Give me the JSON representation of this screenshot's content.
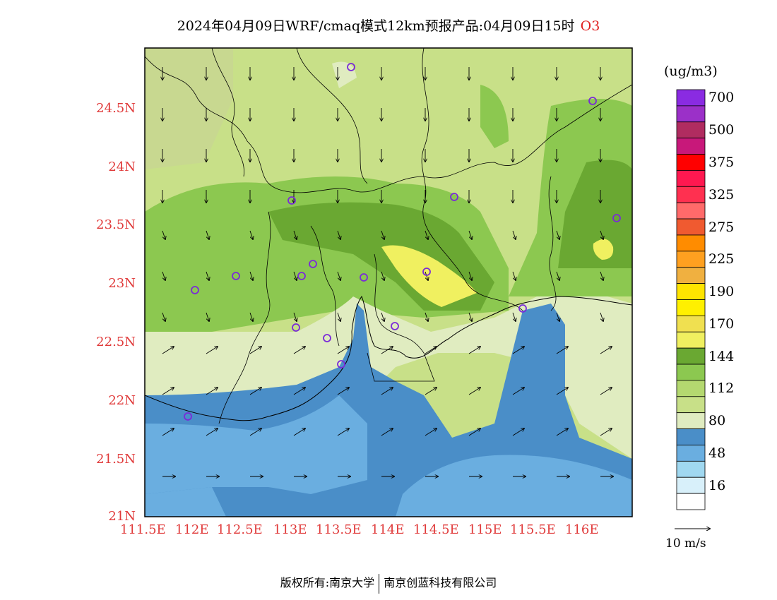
{
  "title": {
    "text": "2024年04月09日WRF/cmaq模式12km预报产品:04月09日15时",
    "variable": "O3"
  },
  "map": {
    "lon_range": [
      111.5,
      116.5
    ],
    "lat_range": [
      21.0,
      25.0
    ],
    "y_ticks": [
      "24.5N",
      "24N",
      "23.5N",
      "23N",
      "22.5N",
      "22N",
      "21.5N",
      "21N"
    ],
    "x_ticks": [
      "111.5E",
      "112E",
      "112.5E",
      "113E",
      "113.5E",
      "114E",
      "114.5E",
      "115E",
      "115.5E",
      "116E"
    ],
    "station_count_note": "monitoring stations shown as purple circles"
  },
  "colorbar": {
    "unit": "(ug/m3)",
    "levels_top_to_bottom": [
      {
        "color": "#8a2be2",
        "label": "700"
      },
      {
        "color": "#9b30c8",
        "label": ""
      },
      {
        "color": "#b02c60",
        "label": "500"
      },
      {
        "color": "#c8187a",
        "label": ""
      },
      {
        "color": "#ff0000",
        "label": "375"
      },
      {
        "color": "#ff1850",
        "label": ""
      },
      {
        "color": "#ff3050",
        "label": "325"
      },
      {
        "color": "#ff6a6a",
        "label": ""
      },
      {
        "color": "#f05a30",
        "label": "275"
      },
      {
        "color": "#ff8c00",
        "label": ""
      },
      {
        "color": "#ffa020",
        "label": "225"
      },
      {
        "color": "#f0b040",
        "label": ""
      },
      {
        "color": "#ffe400",
        "label": "190"
      },
      {
        "color": "#fff000",
        "label": ""
      },
      {
        "color": "#f0e050",
        "label": "170"
      },
      {
        "color": "#f0f060",
        "label": ""
      },
      {
        "color": "#6aa832",
        "label": "144"
      },
      {
        "color": "#8cc850",
        "label": ""
      },
      {
        "color": "#b4d870",
        "label": "112"
      },
      {
        "color": "#c8e088",
        "label": ""
      },
      {
        "color": "#e0ecc0",
        "label": "80"
      },
      {
        "color": "#4a8ec8",
        "label": ""
      },
      {
        "color": "#6aaee0",
        "label": "48"
      },
      {
        "color": "#a0d8f0",
        "label": ""
      },
      {
        "color": "#d8f0fa",
        "label": "16"
      },
      {
        "color": "#ffffff",
        "label": ""
      }
    ]
  },
  "vector_reference": {
    "label": "10 m/s"
  },
  "footer": {
    "left": "版权所有:南京大学",
    "right": "南京创蓝科技有限公司"
  },
  "colors": {
    "tick_label": "#e03a3a",
    "title_var": "#e02020",
    "station": "#7a2ad8"
  }
}
